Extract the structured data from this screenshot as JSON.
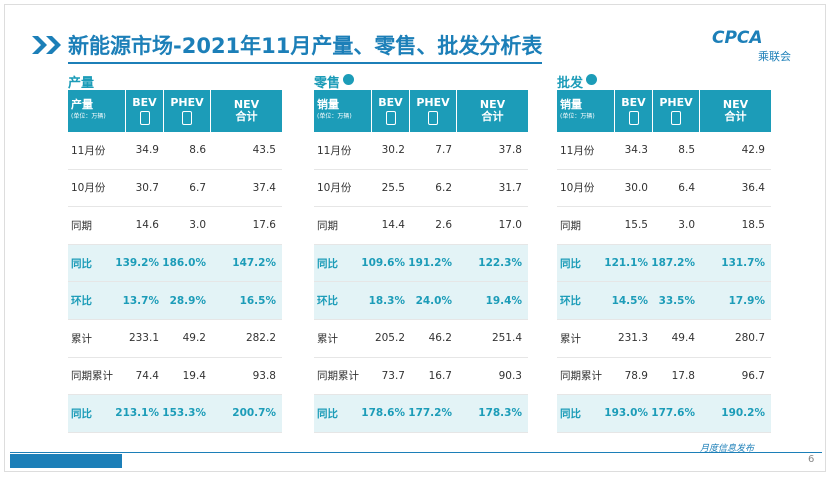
{
  "header": {
    "title": "新能源市场-2021年11月产量、零售、批发分析表",
    "logo": "CPCA",
    "logo_sub": "乘联会"
  },
  "sections": [
    {
      "title": "产量",
      "header": {
        "label": "产量",
        "unit": "(单位：万辆)",
        "bev": "BEV",
        "phev": "PHEV",
        "nev": "NEV",
        "nev_sub": "合计"
      },
      "rows": [
        [
          "11月份",
          "34.9",
          "8.6",
          "43.5"
        ],
        [
          "10月份",
          "30.7",
          "6.7",
          "37.4"
        ],
        [
          "同期",
          "14.6",
          "3.0",
          "17.6"
        ],
        [
          "同比",
          "139.2%",
          "186.0%",
          "147.2%"
        ],
        [
          "环比",
          "13.7%",
          "28.9%",
          "16.5%"
        ],
        [
          "累计",
          "233.1",
          "49.2",
          "282.2"
        ],
        [
          "同期累计",
          "74.4",
          "19.4",
          "93.8"
        ],
        [
          "同比",
          "213.1%",
          "153.3%",
          "200.7%"
        ]
      ]
    },
    {
      "title": "零售",
      "header": {
        "label": "销量",
        "unit": "(单位：万辆)",
        "bev": "BEV",
        "phev": "PHEV",
        "nev": "NEV",
        "nev_sub": "合计"
      },
      "rows": [
        [
          "11月份",
          "30.2",
          "7.7",
          "37.8"
        ],
        [
          "10月份",
          "25.5",
          "6.2",
          "31.7"
        ],
        [
          "同期",
          "14.4",
          "2.6",
          "17.0"
        ],
        [
          "同比",
          "109.6%",
          "191.2%",
          "122.3%"
        ],
        [
          "环比",
          "18.3%",
          "24.0%",
          "19.4%"
        ],
        [
          "累计",
          "205.2",
          "46.2",
          "251.4"
        ],
        [
          "同期累计",
          "73.7",
          "16.7",
          "90.3"
        ],
        [
          "同比",
          "178.6%",
          "177.2%",
          "178.3%"
        ]
      ]
    },
    {
      "title": "批发",
      "header": {
        "label": "销量",
        "unit": "(单位：万辆)",
        "bev": "BEV",
        "phev": "PHEV",
        "nev": "NEV",
        "nev_sub": "合计"
      },
      "rows": [
        [
          "11月份",
          "34.3",
          "8.5",
          "42.9"
        ],
        [
          "10月份",
          "30.0",
          "6.4",
          "36.4"
        ],
        [
          "同期",
          "15.5",
          "3.0",
          "18.5"
        ],
        [
          "同比",
          "121.1%",
          "187.2%",
          "131.7%"
        ],
        [
          "环比",
          "14.5%",
          "33.5%",
          "17.9%"
        ],
        [
          "累计",
          "231.3",
          "49.4",
          "280.7"
        ],
        [
          "同期累计",
          "78.9",
          "17.8",
          "96.7"
        ],
        [
          "同比",
          "193.0%",
          "177.6%",
          "190.2%"
        ]
      ]
    }
  ],
  "footer": {
    "label": "月度信息发布",
    "page": "6"
  }
}
